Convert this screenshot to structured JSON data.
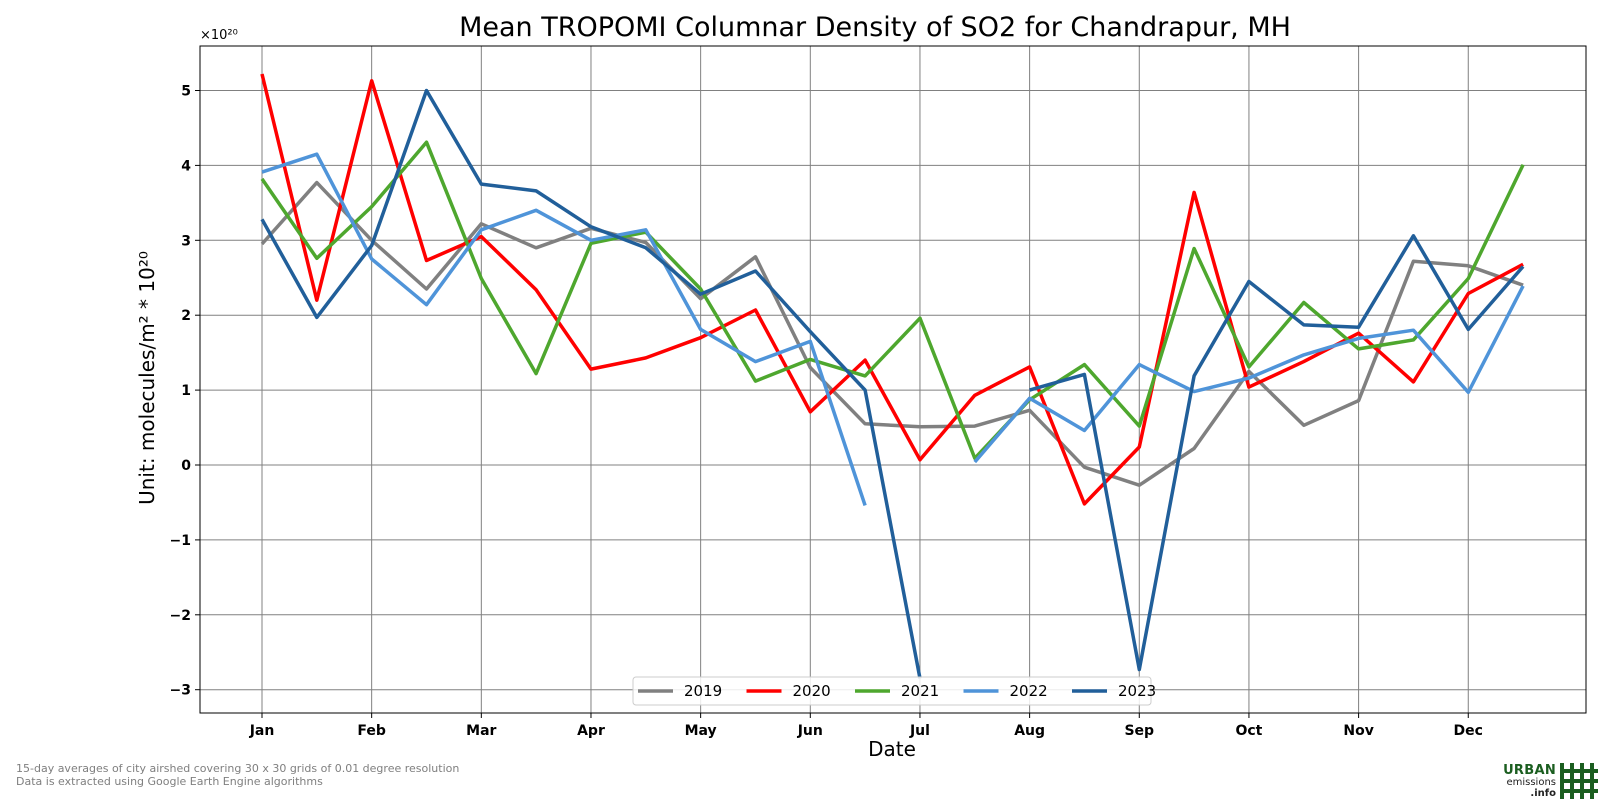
{
  "chart_data": {
    "type": "line",
    "title": "Mean TROPOMI Columnar Density of SO2 for Chandrapur, MH",
    "xlabel": "Date",
    "ylabel": "Unit: molecules/m² * 10²⁰",
    "y_offset_label": "×10²⁰",
    "categories": [
      "Jan",
      "",
      "Feb",
      "",
      "Mar",
      "",
      "Apr",
      "",
      "May",
      "",
      "Jun",
      "",
      "Jul",
      "",
      "Aug",
      "",
      "Sep",
      "",
      "Oct",
      "",
      "Nov",
      "",
      "Dec",
      ""
    ],
    "xticks": [
      "Jan",
      "Feb",
      "Mar",
      "Apr",
      "May",
      "Jun",
      "Jul",
      "Aug",
      "Sep",
      "Oct",
      "Nov",
      "Dec"
    ],
    "yticks": [
      "−3",
      "−2",
      "−1",
      "0",
      "1",
      "2",
      "3",
      "4",
      "5"
    ],
    "ylim": [
      -3.3,
      5.6
    ],
    "grid": true,
    "legend_position": "bottom-center",
    "series": [
      {
        "name": "2019",
        "color": "#808080",
        "values": [
          2.95,
          3.77,
          3.0,
          2.35,
          3.22,
          2.9,
          3.16,
          2.97,
          2.22,
          2.78,
          1.3,
          0.55,
          0.51,
          0.52,
          0.73,
          -0.03,
          -0.27,
          0.22,
          1.25,
          0.53,
          0.86,
          2.72,
          2.66,
          2.4
        ]
      },
      {
        "name": "2020",
        "color": "#ff0000",
        "values": [
          5.22,
          2.2,
          5.13,
          2.73,
          3.05,
          2.34,
          1.28,
          1.43,
          1.7,
          2.07,
          0.71,
          1.4,
          0.07,
          0.93,
          1.31,
          -0.52,
          0.24,
          3.64,
          1.04,
          1.38,
          1.76,
          1.11,
          2.29,
          2.68
        ]
      },
      {
        "name": "2021",
        "color": "#4ea72e",
        "values": [
          3.82,
          2.76,
          3.45,
          4.31,
          2.49,
          1.22,
          2.96,
          3.11,
          2.35,
          1.12,
          1.41,
          1.19,
          1.96,
          0.09,
          0.87,
          1.34,
          0.52,
          2.89,
          1.31,
          2.17,
          1.55,
          1.67,
          2.49,
          4.01
        ]
      },
      {
        "name": "2022",
        "color": "#4f94d9",
        "values": [
          3.91,
          4.15,
          2.75,
          2.14,
          3.14,
          3.4,
          3.0,
          3.14,
          1.81,
          1.38,
          1.65,
          -0.54,
          null,
          0.04,
          0.89,
          0.46,
          1.34,
          0.98,
          1.16,
          1.47,
          1.69,
          1.8,
          0.97,
          2.39
        ]
      },
      {
        "name": "2023",
        "color": "#215f9a",
        "values": [
          3.28,
          1.97,
          2.93,
          5.0,
          3.75,
          3.66,
          3.18,
          2.9,
          2.28,
          2.59,
          1.78,
          1.0,
          -2.85,
          null,
          1.0,
          1.21,
          -2.73,
          1.19,
          2.45,
          1.87,
          1.84,
          3.06,
          1.81,
          2.65
        ]
      }
    ]
  },
  "footer": {
    "line1": "15-day averages of city airshed covering 30 x 30 grids of 0.01 degree resolution",
    "line2": "Data is extracted using Google Earth Engine algorithms"
  },
  "logo": {
    "line1": "URBAN",
    "line2": "emissions",
    "line3": ".info"
  }
}
